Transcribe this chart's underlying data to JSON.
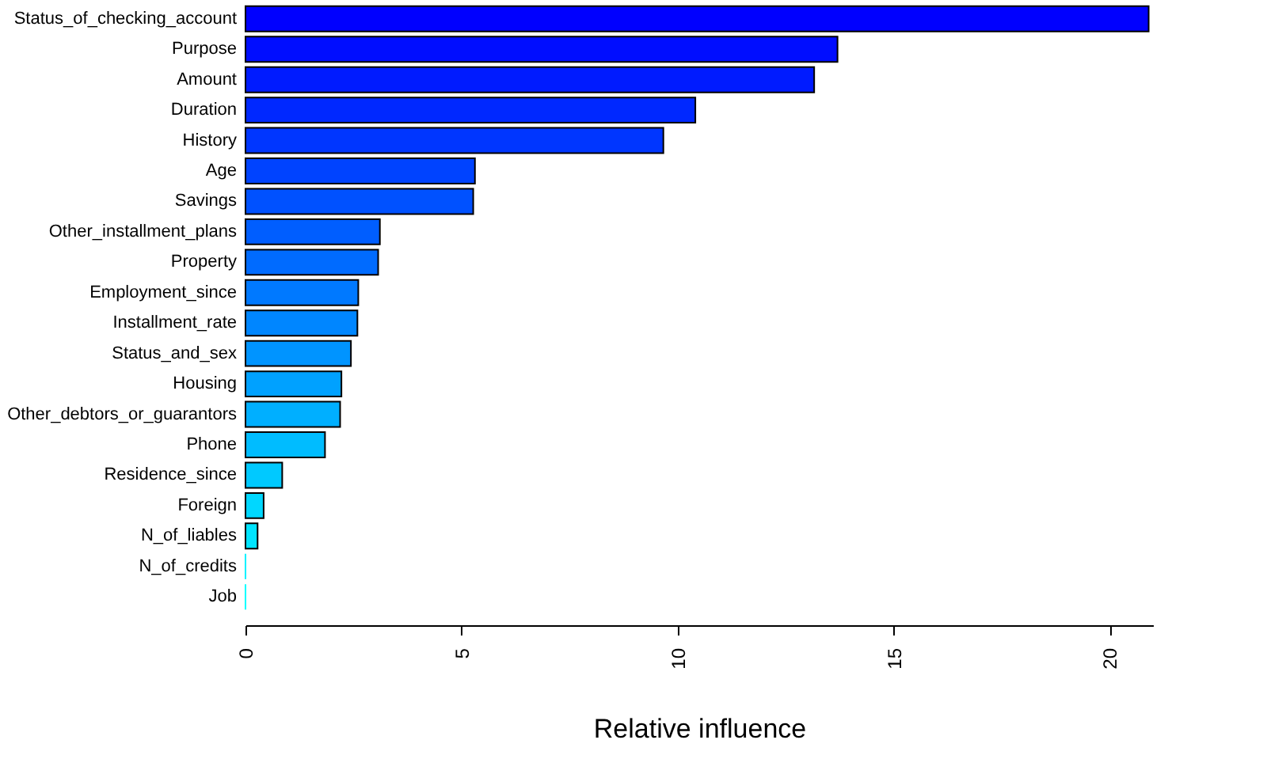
{
  "chart_data": {
    "type": "bar",
    "orientation": "horizontal",
    "xlabel": "Relative influence",
    "categories": [
      "Status_of_checking_account",
      "Purpose",
      "Amount",
      "Duration",
      "History",
      "Age",
      "Savings",
      "Other_installment_plans",
      "Property",
      "Employment_since",
      "Installment_rate",
      "Status_and_sex",
      "Housing",
      "Other_debtors_or_guarantors",
      "Phone",
      "Residence_since",
      "Foreign",
      "N_of_liables",
      "N_of_credits",
      "Job"
    ],
    "values": [
      20.9,
      13.7,
      13.16,
      10.41,
      9.67,
      5.31,
      5.27,
      3.11,
      3.07,
      2.61,
      2.59,
      2.44,
      2.22,
      2.19,
      1.84,
      0.85,
      0.42,
      0.28,
      0,
      0
    ],
    "colors": [
      "#0000ff",
      "#000dff",
      "#001bff",
      "#0028ff",
      "#0036ff",
      "#0043ff",
      "#0051ff",
      "#005eff",
      "#006bff",
      "#0079ff",
      "#0086ff",
      "#0094ff",
      "#00a1ff",
      "#00afff",
      "#00bcff",
      "#00c9ff",
      "#00d7ff",
      "#00e4ff",
      "#00f2ff",
      "#00ffff"
    ],
    "xlim": [
      0,
      21
    ],
    "xticks": [
      0,
      5,
      10,
      15,
      20
    ],
    "grid": false
  }
}
